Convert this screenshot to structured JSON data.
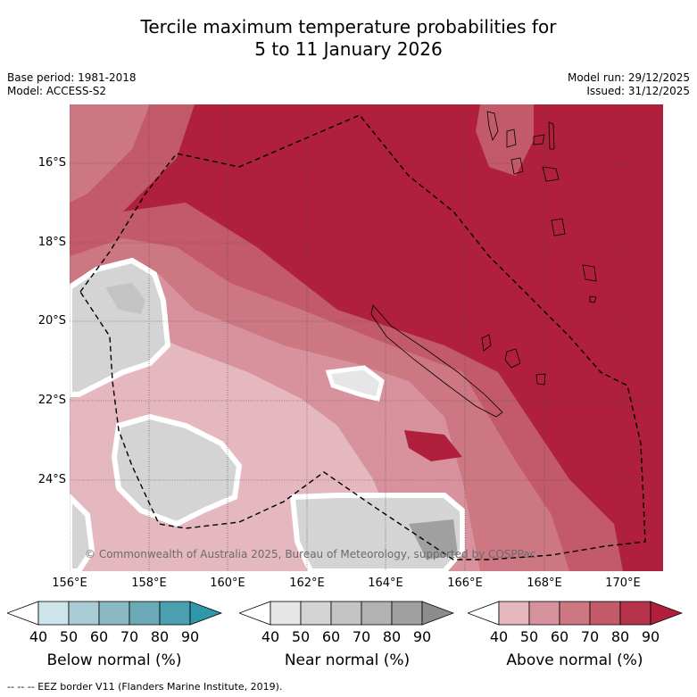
{
  "title_line1": "Tercile maximum temperature probabilities for",
  "title_line2": "5 to 11 January 2026",
  "base_period": "Base period: 1981-2018",
  "model": "Model: ACCESS-S2",
  "model_run": "Model run: 29/12/2025",
  "issued": "Issued: 31/12/2025",
  "lat_labels": [
    "16°S",
    "18°S",
    "20°S",
    "22°S",
    "24°S"
  ],
  "lon_labels": [
    "156°E",
    "158°E",
    "160°E",
    "162°E",
    "164°E",
    "166°E",
    "168°E",
    "170°E"
  ],
  "copyright": "© Commonwealth of Australia 2025, Bureau of Meteorology, supported by COSPPac",
  "colorbars": [
    {
      "title": "Below normal (%)",
      "ticks": [
        "40",
        "50",
        "60",
        "70",
        "80",
        "90"
      ],
      "colors": [
        "#ffffff",
        "#cde4ea",
        "#a9cbd3",
        "#8ab8c3",
        "#6ba9b7",
        "#4aa0b0",
        "#2e97aa"
      ]
    },
    {
      "title": "Near normal (%)",
      "ticks": [
        "40",
        "50",
        "60",
        "70",
        "80",
        "90"
      ],
      "colors": [
        "#ffffff",
        "#e6e6e6",
        "#d4d4d4",
        "#c4c4c4",
        "#b2b2b2",
        "#a0a0a0",
        "#8c8c8c"
      ]
    },
    {
      "title": "Above normal (%)",
      "ticks": [
        "40",
        "50",
        "60",
        "70",
        "80",
        "90"
      ],
      "colors": [
        "#ffffff",
        "#e5b8c0",
        "#d8929d",
        "#cc7782",
        "#c35a69",
        "#b5334b",
        "#b01f3c"
      ]
    }
  ],
  "footer": "-- -- -- EEZ border V11 (Flanders Marine Institute, 2019)."
}
